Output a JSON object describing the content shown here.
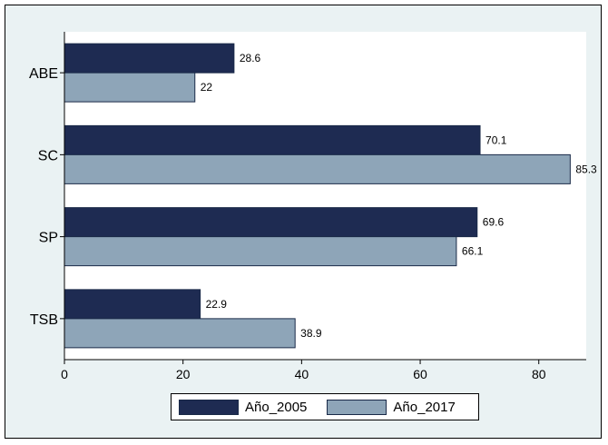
{
  "chart_data": {
    "type": "bar",
    "orientation": "horizontal",
    "categories": [
      "ABE",
      "SC",
      "SP",
      "TSB"
    ],
    "series": [
      {
        "name": "Año_2005",
        "values": [
          28.6,
          70.1,
          69.6,
          22.9
        ],
        "value_labels": [
          "28.6",
          "70.1",
          "69.6",
          "22.9"
        ],
        "color": "#1e2b52"
      },
      {
        "name": "Año_2017",
        "values": [
          22,
          85.3,
          66.1,
          38.9
        ],
        "value_labels": [
          "22",
          "85.3",
          "66.1",
          "38.9"
        ],
        "color": "#8ea5b8"
      }
    ],
    "xlim": [
      0,
      88
    ],
    "xticks": [
      0,
      20,
      40,
      60,
      80
    ],
    "xtick_labels": [
      "0",
      "20",
      "40",
      "60",
      "80"
    ],
    "grid": false,
    "legend_position": "bottom",
    "title": "",
    "xlabel": "",
    "ylabel": ""
  },
  "colors": {
    "background": "#eaf2f3",
    "plot_area": "#ffffff"
  }
}
